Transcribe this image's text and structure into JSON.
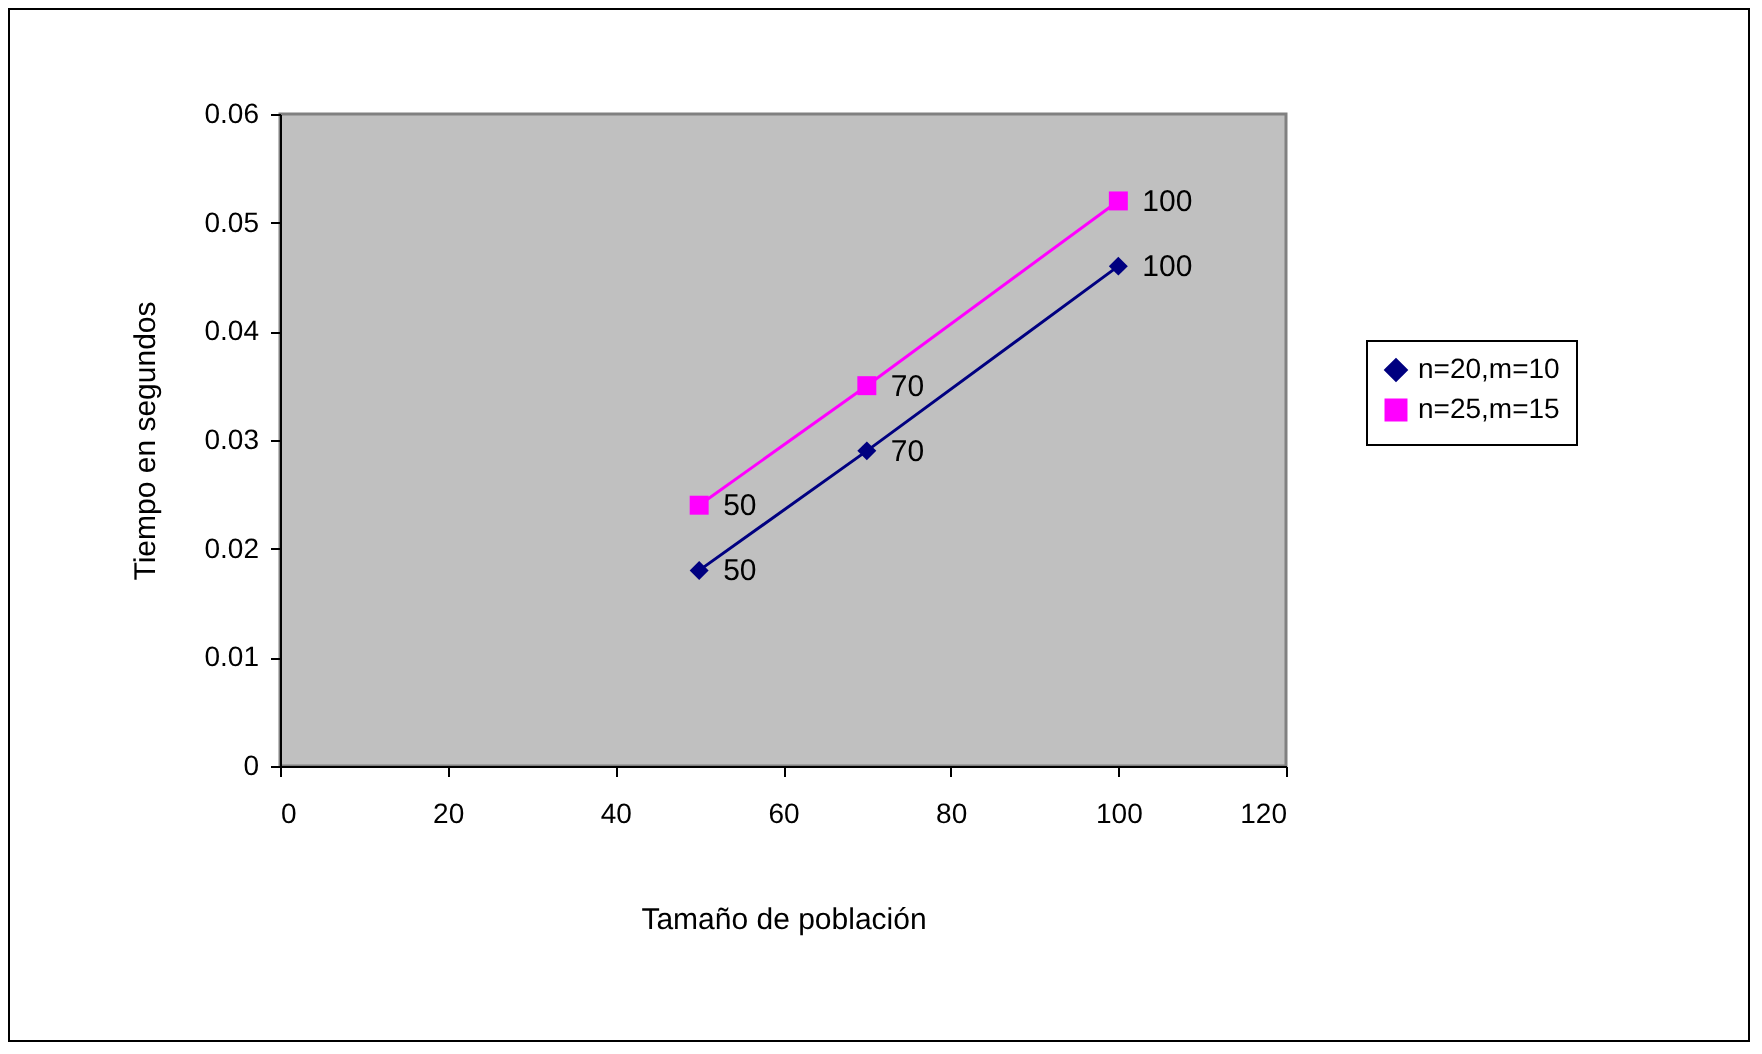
{
  "chart_data": {
    "type": "line",
    "xlabel": "Tamaño de población",
    "ylabel": "Tiempo en segundos",
    "x": [
      50,
      70,
      100
    ],
    "series": [
      {
        "name": "n=20,m=10",
        "color": "#000080",
        "marker": "diamond",
        "values": [
          0.018,
          0.029,
          0.046
        ]
      },
      {
        "name": "n=25,m=15",
        "color": "#ff00ff",
        "marker": "square",
        "values": [
          0.024,
          0.035,
          0.052
        ]
      }
    ],
    "annotations": [
      {
        "text": "50",
        "x": 50,
        "y": 0.018
      },
      {
        "text": "70",
        "x": 70,
        "y": 0.029
      },
      {
        "text": "100",
        "x": 100,
        "y": 0.046
      },
      {
        "text": "50",
        "x": 50,
        "y": 0.024
      },
      {
        "text": "70",
        "x": 70,
        "y": 0.035
      },
      {
        "text": "100",
        "x": 100,
        "y": 0.052
      }
    ],
    "xlim": [
      0,
      120
    ],
    "xticks": [
      0,
      20,
      40,
      60,
      80,
      100,
      120
    ],
    "ylim": [
      0,
      0.06
    ],
    "yticks": [
      0,
      0.01,
      0.02,
      0.03,
      0.04,
      0.05,
      0.06
    ],
    "grid": false,
    "legend": "right"
  }
}
